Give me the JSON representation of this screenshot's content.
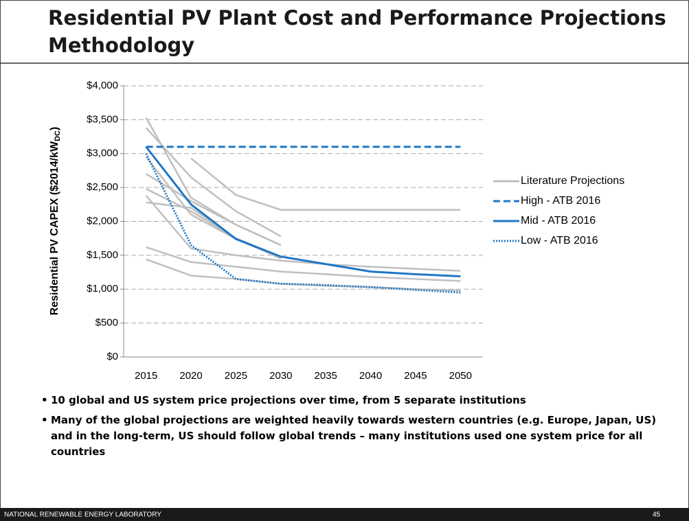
{
  "title": "Residential PV Plant Cost and Performance Projections Methodology",
  "bullets": [
    "10 global and US system price projections over time, from 5 separate institutions",
    "Many of the global projections are weighted heavily towards western countries (e.g. Europe, Japan, US) and in the long-term, US should follow global trends – many institutions used one system price for all countries"
  ],
  "footer": {
    "organization": "NATIONAL RENEWABLE ENERGY LABORATORY",
    "page": "45"
  },
  "chart_data": {
    "type": "line",
    "y_label": "Residential PV CAPEX ($2014/kW",
    "y_label_sub": "DC",
    "y_label_end": ")",
    "x": [
      2015,
      2020,
      2025,
      2030,
      2035,
      2040,
      2045,
      2050
    ],
    "xlim": [
      2012.5,
      2052.5
    ],
    "xticks": [
      2015,
      2020,
      2025,
      2030,
      2035,
      2040,
      2045,
      2050
    ],
    "ylim": [
      0,
      4000
    ],
    "yticks": [
      {
        "value": 0,
        "label": "$0"
      },
      {
        "value": 500,
        "label": "$500"
      },
      {
        "value": 1000,
        "label": "$1,000"
      },
      {
        "value": 1500,
        "label": "$1,500"
      },
      {
        "value": 2000,
        "label": "$2,000"
      },
      {
        "value": 2500,
        "label": "$2,500"
      },
      {
        "value": 3000,
        "label": "$3,000"
      },
      {
        "value": 3500,
        "label": "$3,500"
      },
      {
        "value": 4000,
        "label": "$4,000"
      }
    ],
    "grid": true,
    "legend": "right",
    "series": [
      {
        "name": "Literature Projections",
        "color": "#bfbfbf",
        "dash": "solid",
        "values": [
          [
            3530,
            2350,
            1950,
            1650,
            null,
            null,
            null,
            null
          ],
          [
            3380,
            2650,
            2150,
            1780,
            null,
            null,
            null,
            null
          ],
          [
            null,
            2930,
            2390,
            2170,
            2170,
            2170,
            2170,
            2170
          ],
          [
            2700,
            2300,
            1950,
            1650,
            null,
            null,
            null,
            null
          ],
          [
            2480,
            2150,
            1750,
            1450,
            null,
            null,
            null,
            null
          ],
          [
            2380,
            1600,
            1500,
            1420,
            1370,
            1330,
            1300,
            1270
          ],
          [
            2280,
            2200,
            1750,
            1480,
            null,
            null,
            null,
            null
          ],
          [
            1620,
            1400,
            1330,
            1260,
            1220,
            1180,
            1150,
            1120
          ],
          [
            1440,
            1200,
            1150,
            1080,
            1050,
            1030,
            1000,
            980
          ],
          [
            2950,
            2100,
            1740,
            1460,
            null,
            null,
            null,
            null
          ]
        ]
      },
      {
        "name": "High - ATB 2016",
        "color": "#1f77c4",
        "dash": "dashed",
        "values": [
          3100,
          3100,
          3100,
          3100,
          3100,
          3100,
          3100,
          3100
        ]
      },
      {
        "name": "Mid - ATB 2016",
        "color": "#1f77c4",
        "dash": "solid",
        "values": [
          3100,
          2250,
          1740,
          1480,
          1370,
          1260,
          1220,
          1190
        ]
      },
      {
        "name": "Low - ATB 2016",
        "color": "#1f77c4",
        "dash": "dotted",
        "values": [
          3000,
          1650,
          1150,
          1080,
          1060,
          1030,
          990,
          950
        ]
      }
    ]
  }
}
